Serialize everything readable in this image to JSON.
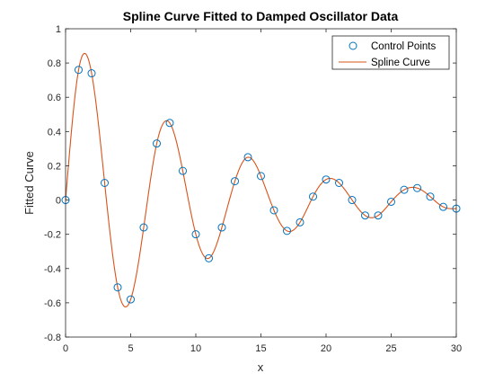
{
  "chart_data": {
    "type": "line",
    "title": "Spline Curve Fitted to Damped Oscillator Data",
    "xlabel": "x",
    "ylabel": "Fitted Curve",
    "xlim": [
      0,
      30
    ],
    "ylim": [
      -0.8,
      1
    ],
    "xticks": [
      0,
      5,
      10,
      15,
      20,
      25,
      30
    ],
    "yticks": [
      -0.8,
      -0.6,
      -0.4,
      -0.2,
      0,
      0.2,
      0.4,
      0.6,
      0.8,
      1
    ],
    "xtick_labels": [
      "0",
      "5",
      "10",
      "15",
      "20",
      "25",
      "30"
    ],
    "ytick_labels": [
      "-0.8",
      "-0.6",
      "-0.4",
      "-0.2",
      "0",
      "0.2",
      "0.4",
      "0.6",
      "0.8",
      "1"
    ],
    "grid": false,
    "legend_position": "top-right",
    "colors": {
      "control_points": "#0072BD",
      "spline_curve": "#D95319",
      "axes": "#262626"
    },
    "series": [
      {
        "name": "Control Points",
        "style": "markers",
        "marker": "circle",
        "x": [
          0,
          1,
          2,
          3,
          4,
          5,
          6,
          7,
          8,
          9,
          10,
          11,
          12,
          13,
          14,
          15,
          16,
          17,
          18,
          19,
          20,
          21,
          22,
          23,
          24,
          25,
          26,
          27,
          28,
          29,
          30
        ],
        "y": [
          0,
          0.76,
          0.74,
          0.1,
          -0.51,
          -0.58,
          -0.16,
          0.33,
          0.45,
          0.17,
          -0.2,
          -0.34,
          -0.16,
          0.11,
          0.25,
          0.14,
          -0.06,
          -0.18,
          -0.13,
          0.02,
          0.12,
          0.1,
          0.0,
          -0.09,
          -0.09,
          -0.01,
          0.06,
          0.07,
          0.02,
          -0.04,
          -0.05
        ]
      },
      {
        "name": "Spline Curve",
        "style": "line",
        "x": [
          0,
          1,
          2,
          3,
          4,
          5,
          6,
          7,
          8,
          9,
          10,
          11,
          12,
          13,
          14,
          15,
          16,
          17,
          18,
          19,
          20,
          21,
          22,
          23,
          24,
          25,
          26,
          27,
          28,
          29,
          30
        ],
        "y": [
          0,
          0.76,
          0.74,
          0.1,
          -0.51,
          -0.58,
          -0.16,
          0.33,
          0.45,
          0.17,
          -0.2,
          -0.34,
          -0.16,
          0.11,
          0.25,
          0.14,
          -0.06,
          -0.18,
          -0.13,
          0.02,
          0.12,
          0.1,
          0.0,
          -0.09,
          -0.09,
          -0.01,
          0.06,
          0.07,
          0.02,
          -0.04,
          -0.05
        ]
      }
    ]
  }
}
